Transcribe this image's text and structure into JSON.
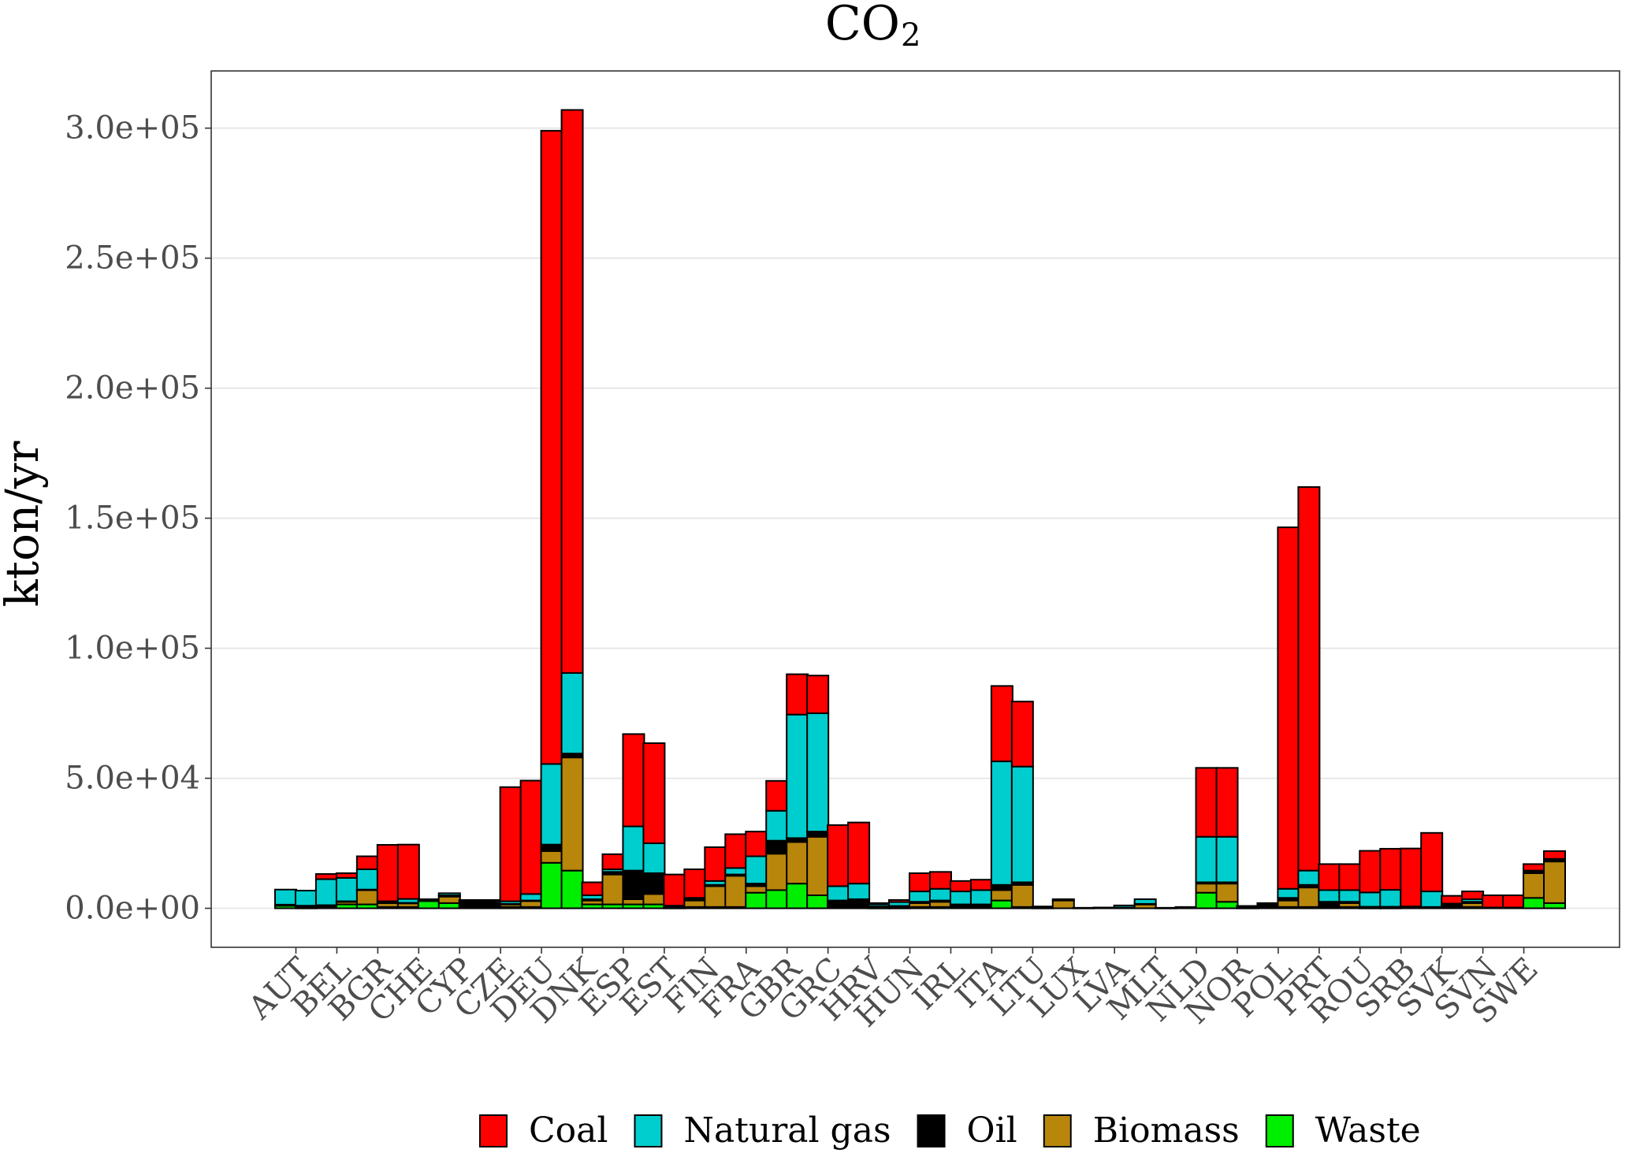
{
  "chart_data": {
    "type": "bar",
    "stacked": true,
    "title": "CO",
    "title_subscript": "2",
    "ylabel": "kton/yr",
    "xlabel": "",
    "ylim": [
      -15000,
      322000
    ],
    "y_ticks": [
      0,
      50000,
      100000,
      150000,
      200000,
      250000,
      300000
    ],
    "y_tick_labels": [
      "0.0e+00",
      "5.0e+04",
      "1.0e+05",
      "1.5e+05",
      "2.0e+05",
      "2.5e+05",
      "3.0e+05"
    ],
    "grid": "horizontal",
    "legend_position": "bottom",
    "categories": [
      "AUT",
      "BEL",
      "BGR",
      "CHE",
      "CYP",
      "CZE",
      "DEU",
      "DNK",
      "ESP",
      "EST",
      "FIN",
      "FRA",
      "GBR",
      "GRC",
      "HRV",
      "HUN",
      "IRL",
      "ITA",
      "LTU",
      "LUX",
      "LVA",
      "MLT",
      "NLD",
      "NOR",
      "POL",
      "PRT",
      "ROU",
      "SRB",
      "SVK",
      "SVN",
      "SWE"
    ],
    "bars_per_category": 2,
    "bar_groups": [
      {
        "category": "AUT",
        "bars": [
          {
            "Waste": 1000,
            "Biomass": 200,
            "Oil": 200,
            "Natural gas": 5800,
            "Coal": 0
          },
          {
            "Waste": 200,
            "Biomass": 700,
            "Oil": 100,
            "Natural gas": 5800,
            "Coal": 0
          }
        ]
      },
      {
        "category": "BEL",
        "bars": [
          {
            "Waste": 500,
            "Biomass": 500,
            "Oil": 200,
            "Natural gas": 10000,
            "Coal": 2000
          },
          {
            "Waste": 1500,
            "Biomass": 1000,
            "Oil": 200,
            "Natural gas": 9000,
            "Coal": 1800
          }
        ]
      },
      {
        "category": "BGR",
        "bars": [
          {
            "Waste": 1500,
            "Biomass": 5500,
            "Oil": 200,
            "Natural gas": 7800,
            "Coal": 5000
          },
          {
            "Waste": 500,
            "Biomass": 1500,
            "Oil": 200,
            "Natural gas": 500,
            "Coal": 21700
          }
        ]
      },
      {
        "category": "CHE",
        "bars": [
          {
            "Waste": 500,
            "Biomass": 1500,
            "Oil": 100,
            "Natural gas": 1500,
            "Coal": 20900
          },
          {
            "Waste": 2800,
            "Biomass": 0,
            "Oil": 200,
            "Natural gas": 500,
            "Coal": 0
          }
        ]
      },
      {
        "category": "CYP",
        "bars": [
          {
            "Waste": 2000,
            "Biomass": 2500,
            "Oil": 500,
            "Natural gas": 800,
            "Coal": 0
          },
          {
            "Waste": 0,
            "Biomass": 0,
            "Oil": 3200,
            "Natural gas": 0,
            "Coal": 0
          }
        ]
      },
      {
        "category": "CZE",
        "bars": [
          {
            "Waste": 0,
            "Biomass": 0,
            "Oil": 3200,
            "Natural gas": 0,
            "Coal": 0
          },
          {
            "Waste": 500,
            "Biomass": 1000,
            "Oil": 200,
            "Natural gas": 1000,
            "Coal": 43900
          }
        ]
      },
      {
        "category": "DEU",
        "bars": [
          {
            "Waste": 500,
            "Biomass": 2300,
            "Oil": 200,
            "Natural gas": 2500,
            "Coal": 43600
          },
          {
            "Waste": 17500,
            "Biomass": 4500,
            "Oil": 2500,
            "Natural gas": 31000,
            "Coal": 243500
          }
        ]
      },
      {
        "category": "DNK",
        "bars": [
          {
            "Waste": 14500,
            "Biomass": 43500,
            "Oil": 1500,
            "Natural gas": 31000,
            "Coal": 216500
          },
          {
            "Waste": 1500,
            "Biomass": 1500,
            "Oil": 500,
            "Natural gas": 1500,
            "Coal": 5000
          }
        ]
      },
      {
        "category": "ESP",
        "bars": [
          {
            "Waste": 1500,
            "Biomass": 11500,
            "Oil": 1000,
            "Natural gas": 1000,
            "Coal": 5800
          },
          {
            "Waste": 1500,
            "Biomass": 2000,
            "Oil": 11000,
            "Natural gas": 17000,
            "Coal": 35500
          }
        ]
      },
      {
        "category": "EST",
        "bars": [
          {
            "Waste": 1500,
            "Biomass": 4000,
            "Oil": 8000,
            "Natural gas": 11500,
            "Coal": 38500
          },
          {
            "Waste": 200,
            "Biomass": 300,
            "Oil": 200,
            "Natural gas": 300,
            "Coal": 12000
          }
        ]
      },
      {
        "category": "FIN",
        "bars": [
          {
            "Waste": 500,
            "Biomass": 2500,
            "Oil": 500,
            "Natural gas": 500,
            "Coal": 11000
          },
          {
            "Waste": 500,
            "Biomass": 8000,
            "Oil": 500,
            "Natural gas": 1500,
            "Coal": 13000
          }
        ]
      },
      {
        "category": "FRA",
        "bars": [
          {
            "Waste": 500,
            "Biomass": 12000,
            "Oil": 500,
            "Natural gas": 2500,
            "Coal": 13000
          },
          {
            "Waste": 6000,
            "Biomass": 2500,
            "Oil": 1000,
            "Natural gas": 10500,
            "Coal": 9500
          }
        ]
      },
      {
        "category": "GBR",
        "bars": [
          {
            "Waste": 7000,
            "Biomass": 14000,
            "Oil": 5000,
            "Natural gas": 11500,
            "Coal": 11500
          },
          {
            "Waste": 9500,
            "Biomass": 16000,
            "Oil": 1500,
            "Natural gas": 47500,
            "Coal": 15500
          }
        ]
      },
      {
        "category": "GRC",
        "bars": [
          {
            "Waste": 5000,
            "Biomass": 22500,
            "Oil": 2000,
            "Natural gas": 45500,
            "Coal": 14500
          },
          {
            "Waste": 0,
            "Biomass": 0,
            "Oil": 3000,
            "Natural gas": 5500,
            "Coal": 23500
          }
        ]
      },
      {
        "category": "HRV",
        "bars": [
          {
            "Waste": 0,
            "Biomass": 0,
            "Oil": 3500,
            "Natural gas": 6000,
            "Coal": 23500
          },
          {
            "Waste": 200,
            "Biomass": 300,
            "Oil": 200,
            "Natural gas": 800,
            "Coal": 500
          }
        ]
      },
      {
        "category": "HUN",
        "bars": [
          {
            "Waste": 200,
            "Biomass": 500,
            "Oil": 200,
            "Natural gas": 1500,
            "Coal": 800
          },
          {
            "Waste": 500,
            "Biomass": 1500,
            "Oil": 500,
            "Natural gas": 4000,
            "Coal": 7000
          }
        ]
      },
      {
        "category": "IRL",
        "bars": [
          {
            "Waste": 500,
            "Biomass": 2000,
            "Oil": 500,
            "Natural gas": 4500,
            "Coal": 6500
          },
          {
            "Waste": 500,
            "Biomass": 500,
            "Oil": 500,
            "Natural gas": 5000,
            "Coal": 4000
          }
        ]
      },
      {
        "category": "ITA",
        "bars": [
          {
            "Waste": 500,
            "Biomass": 500,
            "Oil": 500,
            "Natural gas": 5500,
            "Coal": 4000
          },
          {
            "Waste": 3000,
            "Biomass": 4000,
            "Oil": 2000,
            "Natural gas": 47500,
            "Coal": 29000
          }
        ]
      },
      {
        "category": "LTU",
        "bars": [
          {
            "Waste": 500,
            "Biomass": 8500,
            "Oil": 1000,
            "Natural gas": 44500,
            "Coal": 25000
          },
          {
            "Waste": 200,
            "Biomass": 200,
            "Oil": 300,
            "Natural gas": 0,
            "Coal": 0
          }
        ]
      },
      {
        "category": "LUX",
        "bars": [
          {
            "Waste": 0,
            "Biomass": 3000,
            "Oil": 500,
            "Natural gas": 0,
            "Coal": 0
          },
          {
            "Waste": 0,
            "Biomass": 0,
            "Oil": 200,
            "Natural gas": 0,
            "Coal": 0
          }
        ]
      },
      {
        "category": "LVA",
        "bars": [
          {
            "Waste": 0,
            "Biomass": 0,
            "Oil": 300,
            "Natural gas": 0,
            "Coal": 0
          },
          {
            "Waste": 0,
            "Biomass": 300,
            "Oil": 0,
            "Natural gas": 800,
            "Coal": 0
          }
        ]
      },
      {
        "category": "MLT",
        "bars": [
          {
            "Waste": 0,
            "Biomass": 1500,
            "Oil": 200,
            "Natural gas": 1800,
            "Coal": 0
          },
          {
            "Waste": 0,
            "Biomass": 0,
            "Oil": 200,
            "Natural gas": 0,
            "Coal": 0
          }
        ]
      },
      {
        "category": "NLD",
        "bars": [
          {
            "Waste": 0,
            "Biomass": 0,
            "Oil": 500,
            "Natural gas": 0,
            "Coal": 0
          },
          {
            "Waste": 6000,
            "Biomass": 3500,
            "Oil": 500,
            "Natural gas": 17500,
            "Coal": 26500
          }
        ]
      },
      {
        "category": "NOR",
        "bars": [
          {
            "Waste": 2500,
            "Biomass": 7000,
            "Oil": 500,
            "Natural gas": 17500,
            "Coal": 26500
          },
          {
            "Waste": 200,
            "Biomass": 200,
            "Oil": 300,
            "Natural gas": 200,
            "Coal": 0
          }
        ]
      },
      {
        "category": "POL",
        "bars": [
          {
            "Waste": 0,
            "Biomass": 0,
            "Oil": 2000,
            "Natural gas": 0,
            "Coal": 0
          },
          {
            "Waste": 500,
            "Biomass": 2500,
            "Oil": 1000,
            "Natural gas": 3500,
            "Coal": 139000
          }
        ]
      },
      {
        "category": "PRT",
        "bars": [
          {
            "Waste": 500,
            "Biomass": 7500,
            "Oil": 1000,
            "Natural gas": 5500,
            "Coal": 147500
          },
          {
            "Waste": 500,
            "Biomass": 500,
            "Oil": 1500,
            "Natural gas": 4500,
            "Coal": 10000
          }
        ]
      },
      {
        "category": "ROU",
        "bars": [
          {
            "Waste": 500,
            "Biomass": 1500,
            "Oil": 500,
            "Natural gas": 4500,
            "Coal": 10000
          },
          {
            "Waste": 200,
            "Biomass": 200,
            "Oil": 200,
            "Natural gas": 5500,
            "Coal": 16000
          }
        ]
      },
      {
        "category": "SRB",
        "bars": [
          {
            "Waste": 200,
            "Biomass": 200,
            "Oil": 200,
            "Natural gas": 6500,
            "Coal": 15800
          },
          {
            "Waste": 0,
            "Biomass": 0,
            "Oil": 500,
            "Natural gas": 200,
            "Coal": 22300
          }
        ]
      },
      {
        "category": "SVK",
        "bars": [
          {
            "Waste": 0,
            "Biomass": 0,
            "Oil": 500,
            "Natural gas": 6000,
            "Coal": 22500
          },
          {
            "Waste": 0,
            "Biomass": 500,
            "Oil": 1000,
            "Natural gas": 300,
            "Coal": 3000
          }
        ]
      },
      {
        "category": "SVN",
        "bars": [
          {
            "Waste": 500,
            "Biomass": 1500,
            "Oil": 500,
            "Natural gas": 1000,
            "Coal": 3000
          },
          {
            "Waste": 0,
            "Biomass": 0,
            "Oil": 300,
            "Natural gas": 0,
            "Coal": 4700
          }
        ]
      },
      {
        "category": "SWE",
        "bars": [
          {
            "Waste": 0,
            "Biomass": 0,
            "Oil": 300,
            "Natural gas": 0,
            "Coal": 4700
          },
          {
            "Waste": 4000,
            "Biomass": 9500,
            "Oil": 1000,
            "Natural gas": 0,
            "Coal": 2500
          }
        ]
      }
    ],
    "extra_bars": [
      {
        "Waste": 2000,
        "Biomass": 16000,
        "Oil": 1000,
        "Natural gas": 0,
        "Coal": 3000
      }
    ],
    "series": [
      {
        "name": "Coal",
        "color": "#ff0000"
      },
      {
        "name": "Natural gas",
        "color": "#00cdcd"
      },
      {
        "name": "Oil",
        "color": "#000000"
      },
      {
        "name": "Biomass",
        "color": "#b8860b"
      },
      {
        "name": "Waste",
        "color": "#00ee00"
      }
    ]
  }
}
